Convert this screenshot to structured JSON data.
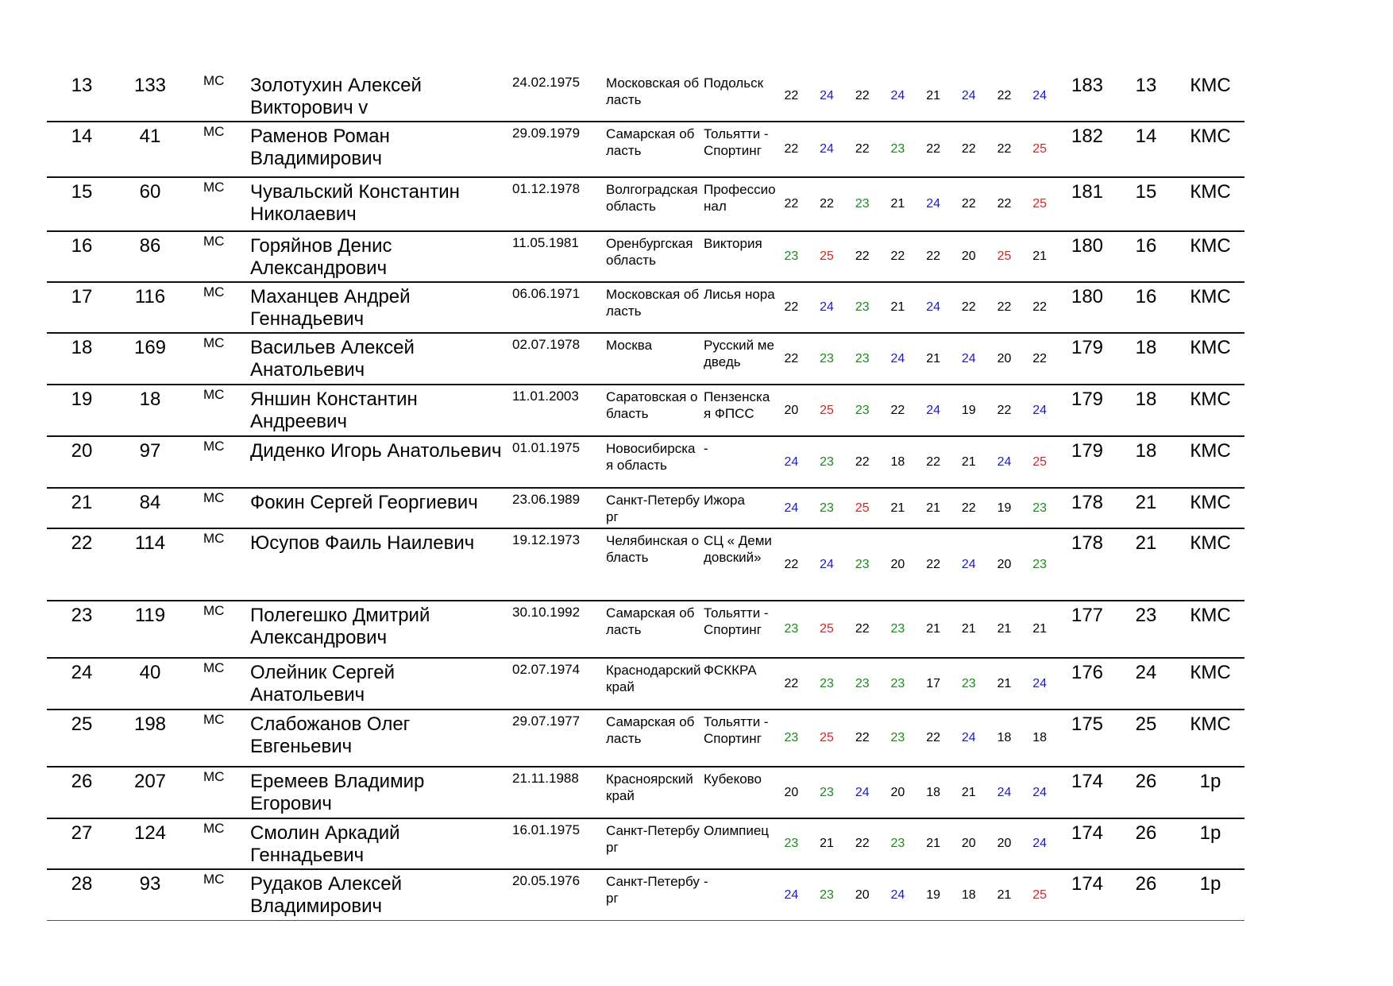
{
  "score_colors": {
    "23": "#1a8a1a",
    "24": "#1a1acc",
    "25": "#dd2222",
    "default": "#000000"
  },
  "rows": [
    {
      "place": "13",
      "num": "133",
      "title": "МС",
      "name": "Золотухин Алексей Викторович v",
      "dob": "24.02.1975",
      "region": "Московская область",
      "club": "Подольск",
      "scores": [
        "22",
        "24",
        "22",
        "24",
        "21",
        "24",
        "22",
        "24"
      ],
      "total": "183",
      "place2": "13",
      "rank": "КМС"
    },
    {
      "place": "14",
      "num": "41",
      "title": "МС",
      "name": "Раменов Роман Владимирович",
      "dob": "29.09.1979",
      "region": "Самарская область",
      "club": "Тольятти - Спортинг",
      "scores": [
        "22",
        "24",
        "22",
        "23",
        "22",
        "22",
        "22",
        "25"
      ],
      "total": "182",
      "place2": "14",
      "rank": "КМС"
    },
    {
      "place": "15",
      "num": "60",
      "title": "МС",
      "name": "Чувальский Константин Николаевич",
      "dob": "01.12.1978",
      "region": "Волгоградская область",
      "club": "Профессионал",
      "scores": [
        "22",
        "22",
        "23",
        "21",
        "24",
        "22",
        "22",
        "25"
      ],
      "total": "181",
      "place2": "15",
      "rank": "КМС"
    },
    {
      "place": "16",
      "num": "86",
      "title": "МС",
      "name": "Горяйнов Денис Александрович",
      "dob": "11.05.1981",
      "region": "Оренбургская область",
      "club": "Виктория",
      "scores": [
        "23",
        "25",
        "22",
        "22",
        "22",
        "20",
        "25",
        "21"
      ],
      "total": "180",
      "place2": "16",
      "rank": "КМС"
    },
    {
      "place": "17",
      "num": "116",
      "title": "МС",
      "name": "Маханцев Андрей Геннадьевич",
      "dob": "06.06.1971",
      "region": "Московская область",
      "club": "Лисья нора",
      "scores": [
        "22",
        "24",
        "23",
        "21",
        "24",
        "22",
        "22",
        "22"
      ],
      "total": "180",
      "place2": "16",
      "rank": "КМС"
    },
    {
      "place": "18",
      "num": "169",
      "title": "МС",
      "name": "Васильев Алексей Анатольевич",
      "dob": "02.07.1978",
      "region": "Москва",
      "club": "Русский медведь",
      "scores": [
        "22",
        "23",
        "23",
        "24",
        "21",
        "24",
        "20",
        "22"
      ],
      "total": "179",
      "place2": "18",
      "rank": "КМС"
    },
    {
      "place": "19",
      "num": "18",
      "title": "МС",
      "name": "Яншин Константин Андреевич",
      "dob": "11.01.2003",
      "region": "Саратовская область",
      "club": "Пензенская ФПСС",
      "scores": [
        "20",
        "25",
        "23",
        "22",
        "24",
        "19",
        "22",
        "24"
      ],
      "total": "179",
      "place2": "18",
      "rank": "КМС"
    },
    {
      "place": "20",
      "num": "97",
      "title": "МС",
      "name": "Диденко Игорь Анатольевич",
      "dob": "01.01.1975",
      "region": "Новосибирская область",
      "club": "-",
      "scores": [
        "24",
        "23",
        "22",
        "18",
        "22",
        "21",
        "24",
        "25"
      ],
      "total": "179",
      "place2": "18",
      "rank": "КМС"
    },
    {
      "place": "21",
      "num": "84",
      "title": "МС",
      "name": "Фокин Сергей Георгиевич",
      "dob": "23.06.1989",
      "region": "Санкт-Петербург",
      "club": "Ижора",
      "scores": [
        "24",
        "23",
        "25",
        "21",
        "21",
        "22",
        "19",
        "23"
      ],
      "total": "178",
      "place2": "21",
      "rank": "КМС"
    },
    {
      "place": "22",
      "num": "114",
      "title": "МС",
      "name": "Юсупов Фаиль Наилевич",
      "dob": "19.12.1973",
      "region": "Челябинская область",
      "club": "СЦ « Демидовский»",
      "scores": [
        "22",
        "24",
        "23",
        "20",
        "22",
        "24",
        "20",
        "23"
      ],
      "total": "178",
      "place2": "21",
      "rank": "КМС"
    },
    {
      "place": "23",
      "num": "119",
      "title": "МС",
      "name": "Полегешко Дмитрий Александрович",
      "dob": "30.10.1992",
      "region": "Самарская область",
      "club": "Тольятти - Спортинг",
      "scores": [
        "23",
        "25",
        "22",
        "23",
        "21",
        "21",
        "21",
        "21"
      ],
      "total": "177",
      "place2": "23",
      "rank": "КМС"
    },
    {
      "place": "24",
      "num": "40",
      "title": "МС",
      "name": "Олейник Сергей Анатольевич",
      "dob": "02.07.1974",
      "region": "Краснодарский край",
      "club": "ФСККРА",
      "scores": [
        "22",
        "23",
        "23",
        "23",
        "17",
        "23",
        "21",
        "24"
      ],
      "total": "176",
      "place2": "24",
      "rank": "КМС"
    },
    {
      "place": "25",
      "num": "198",
      "title": "МС",
      "name": "Слабожанов Олег Евгеньевич",
      "dob": "29.07.1977",
      "region": "Самарская область",
      "club": "Тольятти - Спортинг",
      "scores": [
        "23",
        "25",
        "22",
        "23",
        "22",
        "24",
        "18",
        "18"
      ],
      "total": "175",
      "place2": "25",
      "rank": "КМС"
    },
    {
      "place": "26",
      "num": "207",
      "title": "МС",
      "name": "Еремеев Владимир Егорович",
      "dob": "21.11.1988",
      "region": "Красноярский край",
      "club": "Кубеково",
      "scores": [
        "20",
        "23",
        "24",
        "20",
        "18",
        "21",
        "24",
        "24"
      ],
      "total": "174",
      "place2": "26",
      "rank": "1р"
    },
    {
      "place": "27",
      "num": "124",
      "title": "МС",
      "name": "Смолин Аркадий Геннадьевич",
      "dob": "16.01.1975",
      "region": "Санкт-Петербург",
      "club": "Олимпиец",
      "scores": [
        "23",
        "21",
        "22",
        "23",
        "21",
        "20",
        "20",
        "24"
      ],
      "total": "174",
      "place2": "26",
      "rank": "1р"
    },
    {
      "place": "28",
      "num": "93",
      "title": "МС",
      "name": "Рудаков Алексей Владимирович",
      "dob": "20.05.1976",
      "region": "Санкт-Петербург",
      "club": "-",
      "scores": [
        "24",
        "23",
        "20",
        "24",
        "19",
        "18",
        "21",
        "25"
      ],
      "total": "174",
      "place2": "26",
      "rank": "1р"
    }
  ]
}
